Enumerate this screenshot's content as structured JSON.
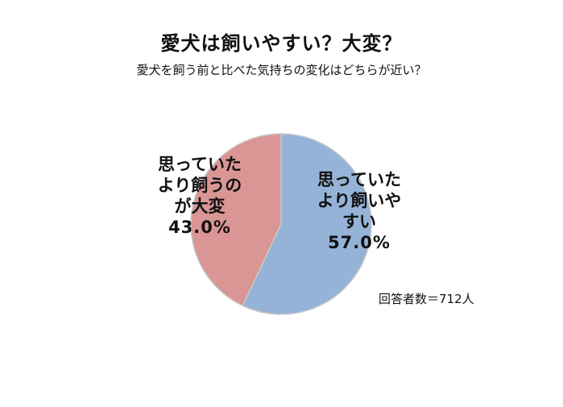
{
  "title": "愛犬は飼いやすい？大変？",
  "subtitle": "愛犬を飼う前と比べた気持ちの変化はどちらが近い？",
  "note": "回答者数＝712人",
  "chart_data": {
    "type": "pie",
    "title": "愛犬は飼いやすい？大変？",
    "subtitle": "愛犬を飼う前と比べた気持ちの変化はどちらが近い？",
    "slices": [
      {
        "label_lines": [
          "思っていた",
          "より飼いや",
          "すい"
        ],
        "value": 57.0,
        "value_label": "57.0%",
        "color": "#95b3d7"
      },
      {
        "label_lines": [
          "思っていた",
          "より飼うの",
          "が大変"
        ],
        "value": 43.0,
        "value_label": "43.0%",
        "color": "#d99694"
      }
    ],
    "start_angle_deg": 0,
    "direction": "clockwise",
    "legend": "none",
    "data_labels": "inside"
  }
}
